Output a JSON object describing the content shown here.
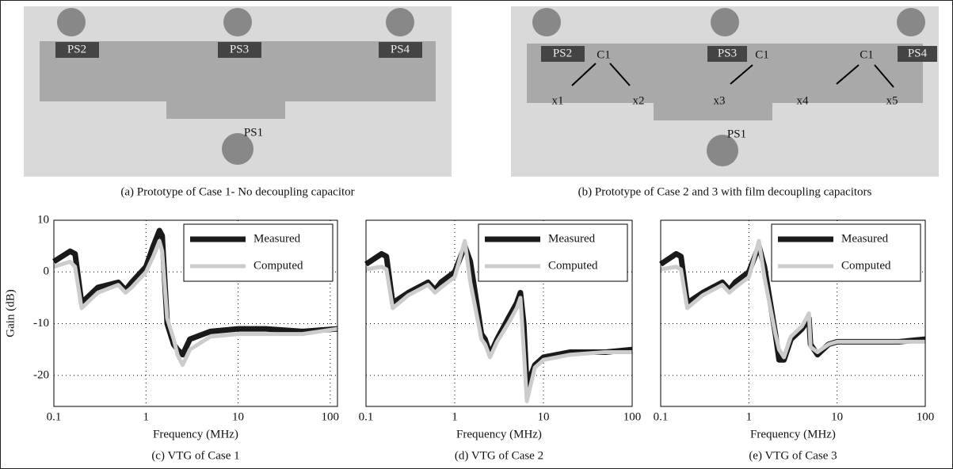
{
  "photos": [
    {
      "caption": "(a) Prototype of Case 1- No decoupling capacitor",
      "labels": [
        "PS2",
        "PS3",
        "PS4",
        "PS1"
      ]
    },
    {
      "caption": "(b) Prototype of Case 2 and 3 with film decoupling capacitors",
      "labels": [
        "PS2",
        "PS3",
        "PS4",
        "PS1",
        "C1",
        "C1",
        "C1",
        "x1",
        "x2",
        "x3",
        "x4",
        "x5"
      ]
    }
  ],
  "chart_data": [
    {
      "type": "line",
      "caption": "(c) VTG of Case 1",
      "xlabel": "Frequency (MHz)",
      "ylabel": "Gain (dB)",
      "xscale": "log",
      "legend": "upper right",
      "grid": true,
      "xlim": [
        0.1,
        120
      ],
      "xticks": [
        0.1,
        1,
        10,
        100
      ],
      "ylim": [
        -26,
        10
      ],
      "yticks": [
        -20,
        -10,
        0,
        10
      ],
      "x": [
        0.1,
        0.15,
        0.17,
        0.2,
        0.3,
        0.5,
        0.6,
        0.7,
        1,
        1.2,
        1.4,
        1.5,
        1.7,
        2,
        2.2,
        2.5,
        3,
        5,
        10,
        20,
        50,
        120
      ],
      "series": [
        {
          "name": "Measured",
          "color": "#1a1a1a",
          "values": [
            2,
            4,
            3.5,
            -6,
            -3,
            -2,
            -3.5,
            -2,
            1,
            5,
            8,
            7,
            -10,
            -14,
            -15,
            -16,
            -13,
            -11.5,
            -11,
            -11,
            -11.5,
            -11
          ]
        },
        {
          "name": "Computed",
          "color": "#cccccc",
          "values": [
            1,
            2,
            1,
            -7,
            -4,
            -2.5,
            -4,
            -3,
            0,
            3,
            6,
            4,
            -9,
            -13,
            -16,
            -18,
            -15,
            -12.5,
            -12,
            -12,
            -12,
            -11
          ]
        }
      ]
    },
    {
      "type": "line",
      "caption": "(d) VTG of Case 2",
      "xlabel": "Frequency (MHz)",
      "xscale": "log",
      "legend": "upper right",
      "grid": true,
      "xlim": [
        0.1,
        100
      ],
      "xticks": [
        0.1,
        1,
        10,
        100
      ],
      "ylim": [
        -26,
        10
      ],
      "yticks": [
        -20,
        -10,
        0,
        10
      ],
      "x": [
        0.1,
        0.15,
        0.17,
        0.2,
        0.3,
        0.5,
        0.6,
        0.7,
        1,
        1.3,
        1.5,
        2,
        2.2,
        2.5,
        3,
        4,
        5,
        5.5,
        6,
        6.5,
        8,
        10,
        20,
        50,
        100
      ],
      "series": [
        {
          "name": "Measured",
          "color": "#1a1a1a",
          "values": [
            1.5,
            3.5,
            3,
            -6,
            -4,
            -2,
            -3.5,
            -2,
            0,
            5,
            2,
            -12,
            -13,
            -16,
            -13,
            -9,
            -6,
            -4,
            -10,
            -22,
            -18,
            -16.5,
            -15.5,
            -15.5,
            -15
          ]
        },
        {
          "name": "Computed",
          "color": "#cccccc",
          "values": [
            0.5,
            1,
            0.5,
            -7,
            -4.5,
            -2.5,
            -4,
            -3,
            -1,
            6,
            -2,
            -13,
            -14,
            -16.5,
            -13.5,
            -10,
            -7,
            -5,
            -15,
            -25,
            -18.5,
            -17,
            -16,
            -15.5,
            -15.5
          ]
        }
      ]
    },
    {
      "type": "line",
      "caption": "(e) VTG of Case 3",
      "xlabel": "Frequency (MHz)",
      "xscale": "log",
      "legend": "upper right",
      "grid": true,
      "xlim": [
        0.1,
        100
      ],
      "xticks": [
        0.1,
        1,
        10,
        100
      ],
      "ylim": [
        -26,
        10
      ],
      "yticks": [
        -20,
        -10,
        0,
        10
      ],
      "x": [
        0.1,
        0.15,
        0.17,
        0.2,
        0.3,
        0.5,
        0.6,
        0.7,
        1,
        1.3,
        1.5,
        2,
        2.2,
        2.5,
        3,
        4,
        4.8,
        5,
        6,
        8,
        10,
        20,
        50,
        100
      ],
      "series": [
        {
          "name": "Measured",
          "color": "#1a1a1a",
          "values": [
            1.5,
            3.5,
            3,
            -6,
            -4,
            -2,
            -3.5,
            -2,
            0,
            5,
            1,
            -12,
            -17,
            -17,
            -13,
            -11,
            -9,
            -14,
            -16,
            -14,
            -13.5,
            -13.5,
            -13.5,
            -13
          ]
        },
        {
          "name": "Computed",
          "color": "#cccccc",
          "values": [
            0.5,
            1,
            0.5,
            -7,
            -4.5,
            -2.5,
            -4,
            -3,
            -1,
            6,
            -1,
            -12,
            -15,
            -16.5,
            -12.5,
            -10.5,
            -8,
            -14.5,
            -15.5,
            -14,
            -13.5,
            -13.5,
            -13.5,
            -13.5
          ]
        }
      ]
    }
  ]
}
